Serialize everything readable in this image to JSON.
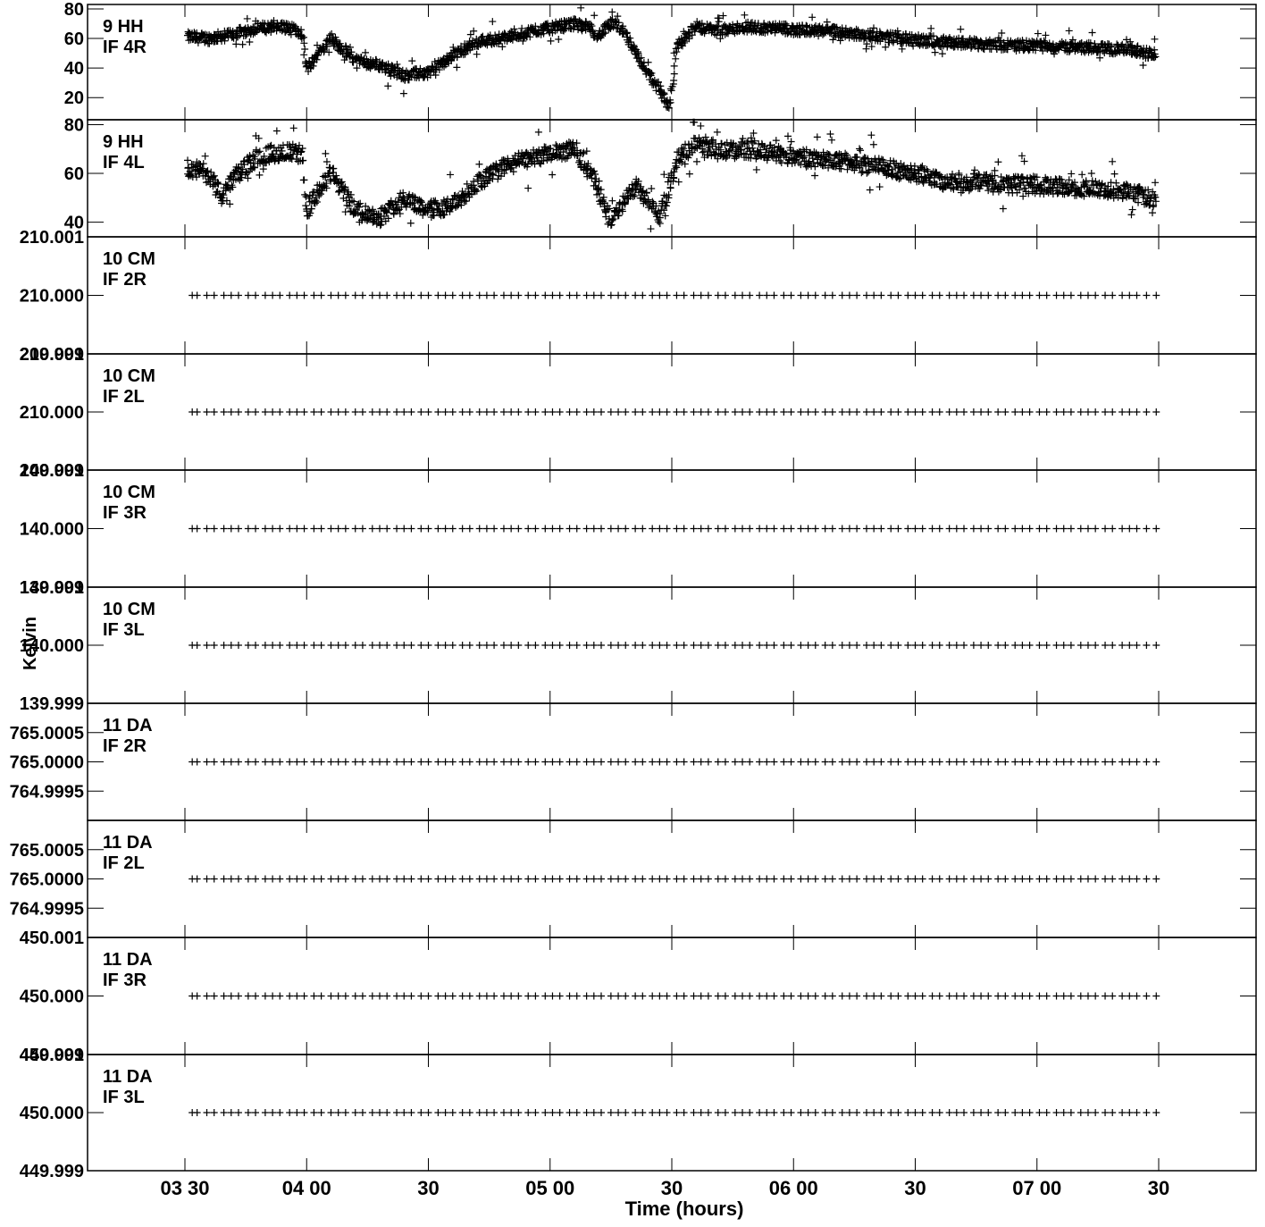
{
  "chart_data": {
    "type": "scatter",
    "xlabel": "Time (hours)",
    "ylabel": "Kelvin",
    "x_unit": "hours",
    "xlim": [
      3.1,
      7.9
    ],
    "x_ticks": [
      {
        "value": 3.5,
        "label": "03 30"
      },
      {
        "value": 4.0,
        "label": "04 00"
      },
      {
        "value": 4.5,
        "label": "30"
      },
      {
        "value": 5.0,
        "label": "05 00"
      },
      {
        "value": 5.5,
        "label": "30"
      },
      {
        "value": 6.0,
        "label": "06 00"
      },
      {
        "value": 6.5,
        "label": "30"
      },
      {
        "value": 7.0,
        "label": "07 00"
      },
      {
        "value": 7.5,
        "label": "30"
      }
    ],
    "marker": "+",
    "color": "#000000",
    "panels": [
      {
        "antenna": "9 HH",
        "if": "IF 4R",
        "ylim": [
          5,
          83
        ],
        "y_ticks": [
          {
            "value": 20,
            "label": "20"
          },
          {
            "value": 40,
            "label": "40"
          },
          {
            "value": 60,
            "label": "60"
          },
          {
            "value": 80,
            "label": "80"
          }
        ],
        "trend": [
          [
            3.52,
            61
          ],
          [
            3.6,
            60
          ],
          [
            3.7,
            63
          ],
          [
            3.8,
            67
          ],
          [
            3.9,
            68
          ],
          [
            3.98,
            64
          ],
          [
            4.0,
            40
          ],
          [
            4.1,
            60
          ],
          [
            4.2,
            45
          ],
          [
            4.3,
            42
          ],
          [
            4.4,
            35
          ],
          [
            4.5,
            37
          ],
          [
            4.6,
            48
          ],
          [
            4.7,
            58
          ],
          [
            4.8,
            60
          ],
          [
            4.9,
            64
          ],
          [
            5.0,
            67
          ],
          [
            5.1,
            70
          ],
          [
            5.15,
            68
          ],
          [
            5.2,
            62
          ],
          [
            5.25,
            70
          ],
          [
            5.3,
            66
          ],
          [
            5.38,
            42
          ],
          [
            5.45,
            25
          ],
          [
            5.49,
            12
          ],
          [
            5.52,
            55
          ],
          [
            5.6,
            68
          ],
          [
            5.7,
            65
          ],
          [
            5.8,
            68
          ],
          [
            6.0,
            66
          ],
          [
            6.2,
            64
          ],
          [
            6.5,
            59
          ],
          [
            6.8,
            56
          ],
          [
            7.0,
            55
          ],
          [
            7.2,
            54
          ],
          [
            7.4,
            52
          ],
          [
            7.48,
            49
          ]
        ],
        "scatter": 3.5
      },
      {
        "antenna": "9 HH",
        "if": "IF 4L",
        "ylim": [
          34,
          82
        ],
        "y_ticks": [
          {
            "value": 40,
            "label": "40"
          },
          {
            "value": 60,
            "label": "60"
          },
          {
            "value": 80,
            "label": "80"
          }
        ],
        "trend": [
          [
            3.52,
            62
          ],
          [
            3.6,
            60
          ],
          [
            3.65,
            50
          ],
          [
            3.7,
            58
          ],
          [
            3.8,
            67
          ],
          [
            3.9,
            69
          ],
          [
            3.98,
            68
          ],
          [
            4.0,
            45
          ],
          [
            4.1,
            60
          ],
          [
            4.2,
            45
          ],
          [
            4.3,
            42
          ],
          [
            4.4,
            50
          ],
          [
            4.5,
            45
          ],
          [
            4.6,
            47
          ],
          [
            4.7,
            56
          ],
          [
            4.8,
            62
          ],
          [
            4.9,
            66
          ],
          [
            5.0,
            68
          ],
          [
            5.1,
            70
          ],
          [
            5.18,
            58
          ],
          [
            5.25,
            40
          ],
          [
            5.35,
            55
          ],
          [
            5.45,
            42
          ],
          [
            5.52,
            65
          ],
          [
            5.6,
            73
          ],
          [
            5.7,
            69
          ],
          [
            5.8,
            70
          ],
          [
            6.0,
            67
          ],
          [
            6.2,
            65
          ],
          [
            6.4,
            62
          ],
          [
            6.6,
            57
          ],
          [
            6.8,
            56
          ],
          [
            7.0,
            55
          ],
          [
            7.2,
            54
          ],
          [
            7.4,
            52
          ],
          [
            7.48,
            49
          ]
        ],
        "scatter": 3.5
      },
      {
        "antenna": "10 CM",
        "if": "IF 2R",
        "ylim": [
          209.999,
          210.001
        ],
        "value": 210.0,
        "y_ticks": [
          {
            "value": 210.001,
            "label": "210.001"
          },
          {
            "value": 210.0,
            "label": "210.000"
          },
          {
            "value": 209.999,
            "label": "209.999"
          }
        ]
      },
      {
        "antenna": "10 CM",
        "if": "IF 2L",
        "ylim": [
          209.999,
          210.001
        ],
        "value": 210.0,
        "y_ticks": [
          {
            "value": 210.001,
            "label": "210.001"
          },
          {
            "value": 210.0,
            "label": "210.000"
          },
          {
            "value": 209.999,
            "label": "209.999"
          }
        ]
      },
      {
        "antenna": "10 CM",
        "if": "IF 3R",
        "ylim": [
          139.999,
          140.001
        ],
        "value": 140.0,
        "y_ticks": [
          {
            "value": 140.001,
            "label": "140.001"
          },
          {
            "value": 140.0,
            "label": "140.000"
          },
          {
            "value": 139.999,
            "label": "139.999"
          }
        ]
      },
      {
        "antenna": "10 CM",
        "if": "IF 3L",
        "ylim": [
          139.999,
          140.001
        ],
        "value": 140.0,
        "y_ticks": [
          {
            "value": 140.001,
            "label": "140.001"
          },
          {
            "value": 140.0,
            "label": "140.000"
          },
          {
            "value": 139.999,
            "label": "139.999"
          }
        ]
      },
      {
        "antenna": "11 DA",
        "if": "IF 2R",
        "ylim": [
          764.999,
          765.001
        ],
        "value": 765.0,
        "y_ticks": [
          {
            "value": 765.0005,
            "label": "765.0005"
          },
          {
            "value": 765.0,
            "label": "765.0000"
          },
          {
            "value": 764.9995,
            "label": "764.9995"
          }
        ]
      },
      {
        "antenna": "11 DA",
        "if": "IF 2L",
        "ylim": [
          764.999,
          765.001
        ],
        "value": 765.0,
        "y_ticks": [
          {
            "value": 765.0005,
            "label": "765.0005"
          },
          {
            "value": 765.0,
            "label": "765.0000"
          },
          {
            "value": 764.9995,
            "label": "764.9995"
          }
        ]
      },
      {
        "antenna": "11 DA",
        "if": "IF 3R",
        "ylim": [
          449.999,
          450.001
        ],
        "value": 450.0,
        "y_ticks": [
          {
            "value": 450.001,
            "label": "450.001"
          },
          {
            "value": 450.0,
            "label": "450.000"
          },
          {
            "value": 449.999,
            "label": "449.999"
          }
        ]
      },
      {
        "antenna": "11 DA",
        "if": "IF 3L",
        "ylim": [
          449.999,
          450.001
        ],
        "value": 450.0,
        "y_ticks": [
          {
            "value": 450.001,
            "label": "450.001"
          },
          {
            "value": 450.0,
            "label": "450.000"
          },
          {
            "value": 449.999,
            "label": "449.999"
          }
        ]
      }
    ],
    "constant_series_x": [
      3.53,
      3.55,
      3.59,
      3.62,
      3.66,
      3.69,
      3.72,
      3.76,
      3.79,
      3.83,
      3.86,
      3.89,
      3.93,
      3.96,
      3.99,
      4.03,
      4.06,
      4.1,
      4.13,
      4.16,
      4.2,
      4.23,
      4.27,
      4.3,
      4.33,
      4.37,
      4.4,
      4.43,
      4.47,
      4.5,
      4.54,
      4.57,
      4.6,
      4.64,
      4.67,
      4.71,
      4.74,
      4.77,
      4.81,
      4.84,
      4.87,
      4.91,
      4.94,
      4.98,
      5.01,
      5.04,
      5.08,
      5.11,
      5.15,
      5.18,
      5.21,
      5.25,
      5.28,
      5.31,
      5.35,
      5.38,
      5.42,
      5.45,
      5.48,
      5.52,
      5.55,
      5.59,
      5.62,
      5.65,
      5.69,
      5.72,
      5.76,
      5.79,
      5.82,
      5.86,
      5.89,
      5.92,
      5.96,
      5.99,
      6.03,
      6.06,
      6.09,
      6.13,
      6.16,
      6.2,
      6.23,
      6.26,
      6.3,
      6.33,
      6.36,
      6.4,
      6.43,
      6.47,
      6.5,
      6.53,
      6.57,
      6.6,
      6.64,
      6.67,
      6.7,
      6.74,
      6.77,
      6.8,
      6.84,
      6.87,
      6.91,
      6.94,
      6.97,
      7.01,
      7.04,
      7.08,
      7.11,
      7.14,
      7.18,
      7.21,
      7.24,
      7.28,
      7.31,
      7.35,
      7.38,
      7.41,
      7.45,
      7.49
    ]
  }
}
